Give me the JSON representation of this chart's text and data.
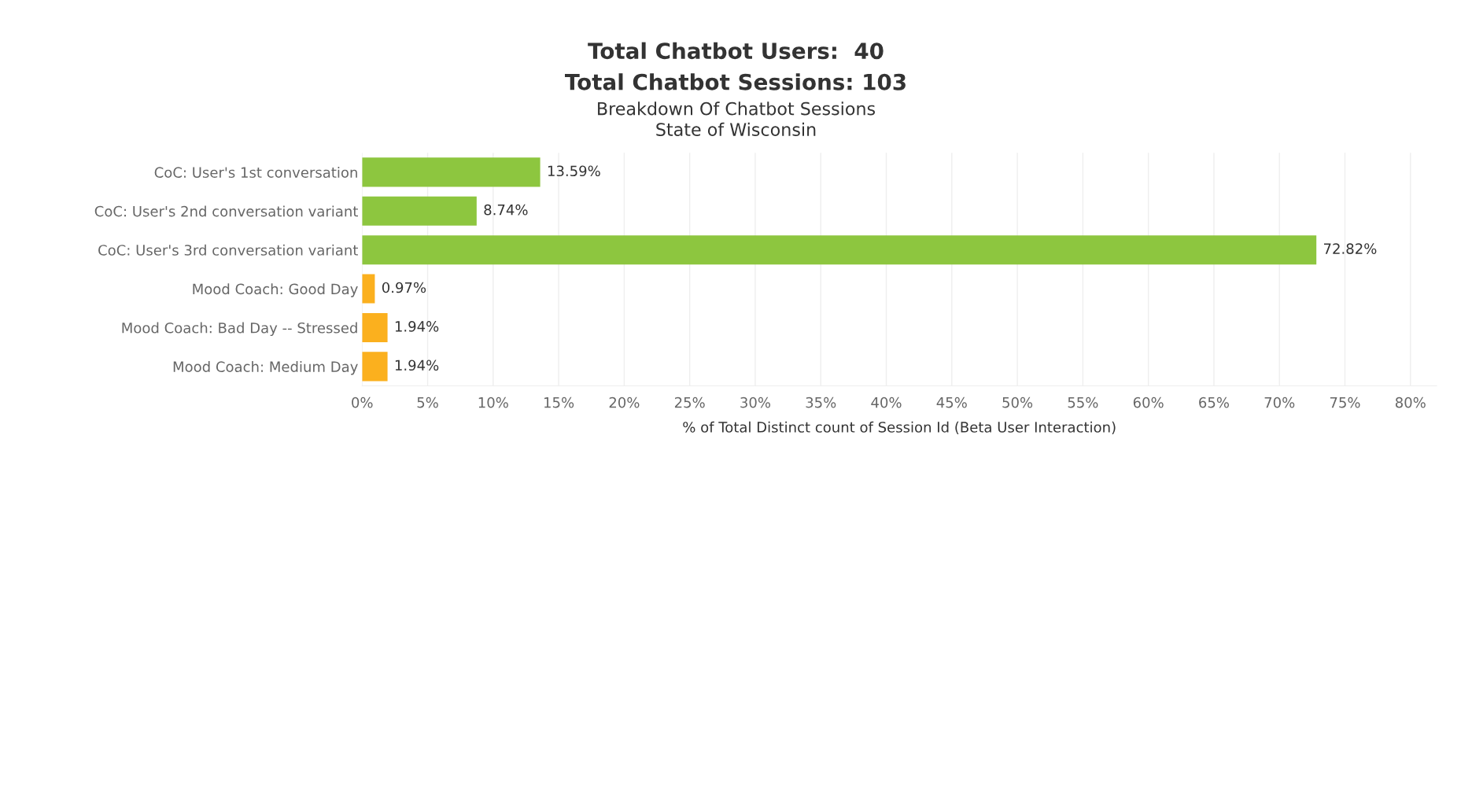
{
  "chart_data": {
    "type": "bar",
    "orientation": "horizontal",
    "title": "Total Chatbot Users:  40\nTotal Chatbot Sessions: 103",
    "subtitle": "Breakdown Of Chatbot Sessions\nState of Wisconsin",
    "xlabel": "% of Total Distinct count of Session Id (Beta User Interaction)",
    "categories": [
      "CoC: User's 1st conversation",
      "CoC: User's 2nd conversation variant",
      "CoC: User's 3rd conversation variant",
      "Mood Coach: Good Day",
      "Mood Coach: Bad Day -- Stressed",
      "Mood Coach: Medium Day"
    ],
    "values": [
      13.59,
      8.74,
      72.82,
      0.97,
      1.94,
      1.94
    ],
    "value_labels": [
      "13.59%",
      "8.74%",
      "72.82%",
      "0.97%",
      "1.94%",
      "1.94%"
    ],
    "colors": [
      "#8dc63f",
      "#8dc63f",
      "#8dc63f",
      "#fbb01e",
      "#fbb01e",
      "#fbb01e"
    ],
    "xlim": [
      0,
      82
    ],
    "xticks": [
      {
        "value": 0,
        "label": "0%"
      },
      {
        "value": 5,
        "label": "5%"
      },
      {
        "value": 10,
        "label": "10%"
      },
      {
        "value": 15,
        "label": "15%"
      },
      {
        "value": 20,
        "label": "20%"
      },
      {
        "value": 25,
        "label": "25%"
      },
      {
        "value": 30,
        "label": "30%"
      },
      {
        "value": 35,
        "label": "35%"
      },
      {
        "value": 40,
        "label": "40%"
      },
      {
        "value": 45,
        "label": "45%"
      },
      {
        "value": 50,
        "label": "50%"
      },
      {
        "value": 55,
        "label": "55%"
      },
      {
        "value": 60,
        "label": "60%"
      },
      {
        "value": 65,
        "label": "65%"
      },
      {
        "value": 70,
        "label": "70%"
      },
      {
        "value": 75,
        "label": "75%"
      },
      {
        "value": 80,
        "label": "80%"
      }
    ],
    "grid": "x",
    "legend": false
  }
}
